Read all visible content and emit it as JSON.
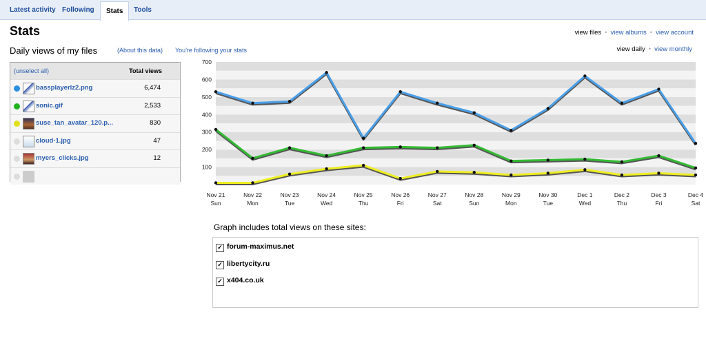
{
  "tabs": [
    {
      "label": "Latest activity",
      "active": false
    },
    {
      "label": "Following",
      "active": false
    },
    {
      "label": "Stats",
      "active": true
    },
    {
      "label": "Tools",
      "active": false
    }
  ],
  "page_title": "Stats",
  "subtitle": "Daily views of my files",
  "about_link": "(About this data)",
  "following_link": "You're following your stats",
  "view_nav": {
    "files": "view files",
    "albums": "view albums",
    "account": "view account",
    "dot": "•"
  },
  "period_nav": {
    "daily": "view daily",
    "monthly": "view monthly",
    "dot": "•"
  },
  "files": {
    "unselect": "(unselect all)",
    "total_header": "Total views",
    "rows": [
      {
        "name": "bassplayerlz2.png",
        "views": "6,474",
        "color": "#2b8fe0"
      },
      {
        "name": "sonic.gif",
        "views": "2,533",
        "color": "#22b322"
      },
      {
        "name": "suse_tan_avatar_120.p...",
        "views": "830",
        "color": "#e0e020"
      },
      {
        "name": "cloud-1.jpg",
        "views": "47",
        "color": "#dddddd"
      },
      {
        "name": "myers_clicks.jpg",
        "views": "12",
        "color": "#dddddd"
      },
      {
        "name": "",
        "views": "",
        "color": "#dddddd"
      }
    ]
  },
  "chart_data": {
    "type": "line",
    "x": [
      "Nov 21",
      "Nov 22",
      "Nov 23",
      "Nov 24",
      "Nov 25",
      "Nov 26",
      "Nov 27",
      "Nov 28",
      "Nov 29",
      "Nov 30",
      "Dec 1",
      "Dec 2",
      "Dec 3",
      "Dec 4"
    ],
    "x_days": [
      "Sun",
      "Mon",
      "Tue",
      "Wed",
      "Thu",
      "Fri",
      "Sat",
      "Sun",
      "Mon",
      "Tue",
      "Wed",
      "Thu",
      "Fri",
      "Sat"
    ],
    "yticks": [
      "700",
      "600",
      "500",
      "400",
      "300",
      "200",
      "100"
    ],
    "ylim": [
      0,
      700
    ],
    "grid": true,
    "series": [
      {
        "name": "bassplayerlz2.png",
        "color": "#4a9fe8",
        "values": [
          530,
          465,
          475,
          640,
          265,
          530,
          465,
          410,
          310,
          435,
          620,
          465,
          545,
          235
        ]
      },
      {
        "name": "sonic.gif",
        "color": "#33bb33",
        "values": [
          315,
          150,
          210,
          165,
          210,
          215,
          210,
          225,
          135,
          140,
          145,
          130,
          165,
          95
        ]
      },
      {
        "name": "suse_tan_avatar_120.p...",
        "color": "#eeee22",
        "values": [
          10,
          10,
          60,
          90,
          110,
          35,
          75,
          70,
          55,
          65,
          85,
          55,
          65,
          55
        ]
      }
    ]
  },
  "sites": {
    "title": "Graph includes total views on these sites:",
    "check": "✓",
    "items": [
      "forum-maximus.net",
      "libertycity.ru",
      "x404.co.uk"
    ]
  }
}
